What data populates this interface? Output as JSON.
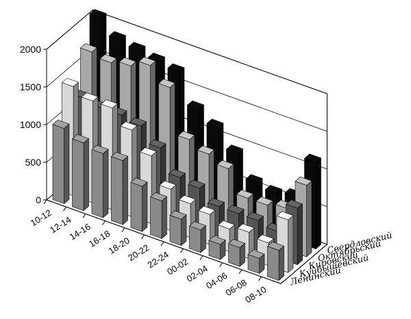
{
  "chart_data": {
    "type": "bar",
    "subtype": "3d-column",
    "categories": [
      "10-12",
      "12-14",
      "14-16",
      "16-18",
      "18-20",
      "20-22",
      "22-24",
      "00-02",
      "02-04",
      "04-06",
      "06-08",
      "08-10"
    ],
    "series": [
      {
        "name": "Ленинский",
        "color": "#8a8a8a",
        "values": [
          1000,
          900,
          850,
          850,
          600,
          500,
          350,
          300,
          200,
          250,
          200,
          400
        ]
      },
      {
        "name": "Куйбышевский",
        "color": "#d8d8d8",
        "values": [
          1450,
          1350,
          1350,
          1150,
          900,
          550,
          450,
          400,
          300,
          350,
          300,
          700
        ]
      },
      {
        "name": "Кировский",
        "color": "#555555",
        "values": [
          1200,
          1150,
          1150,
          1100,
          900,
          600,
          550,
          400,
          400,
          400,
          350,
          750
        ]
      },
      {
        "name": "Октябрьский",
        "color": "#a8a8a8",
        "values": [
          1700,
          1650,
          1700,
          1800,
          1600,
          1000,
          900,
          800,
          500,
          500,
          550,
          950
        ]
      },
      {
        "name": "Свердловский",
        "color": "#0a0a0a",
        "values": [
          2050,
          1850,
          1800,
          1750,
          1700,
          1300,
          1150,
          900,
          600,
          550,
          600,
          1150
        ]
      }
    ],
    "ylim": [
      0,
      2000
    ],
    "yticks": [
      0,
      500,
      1000,
      1500,
      2000
    ],
    "grid": true
  }
}
